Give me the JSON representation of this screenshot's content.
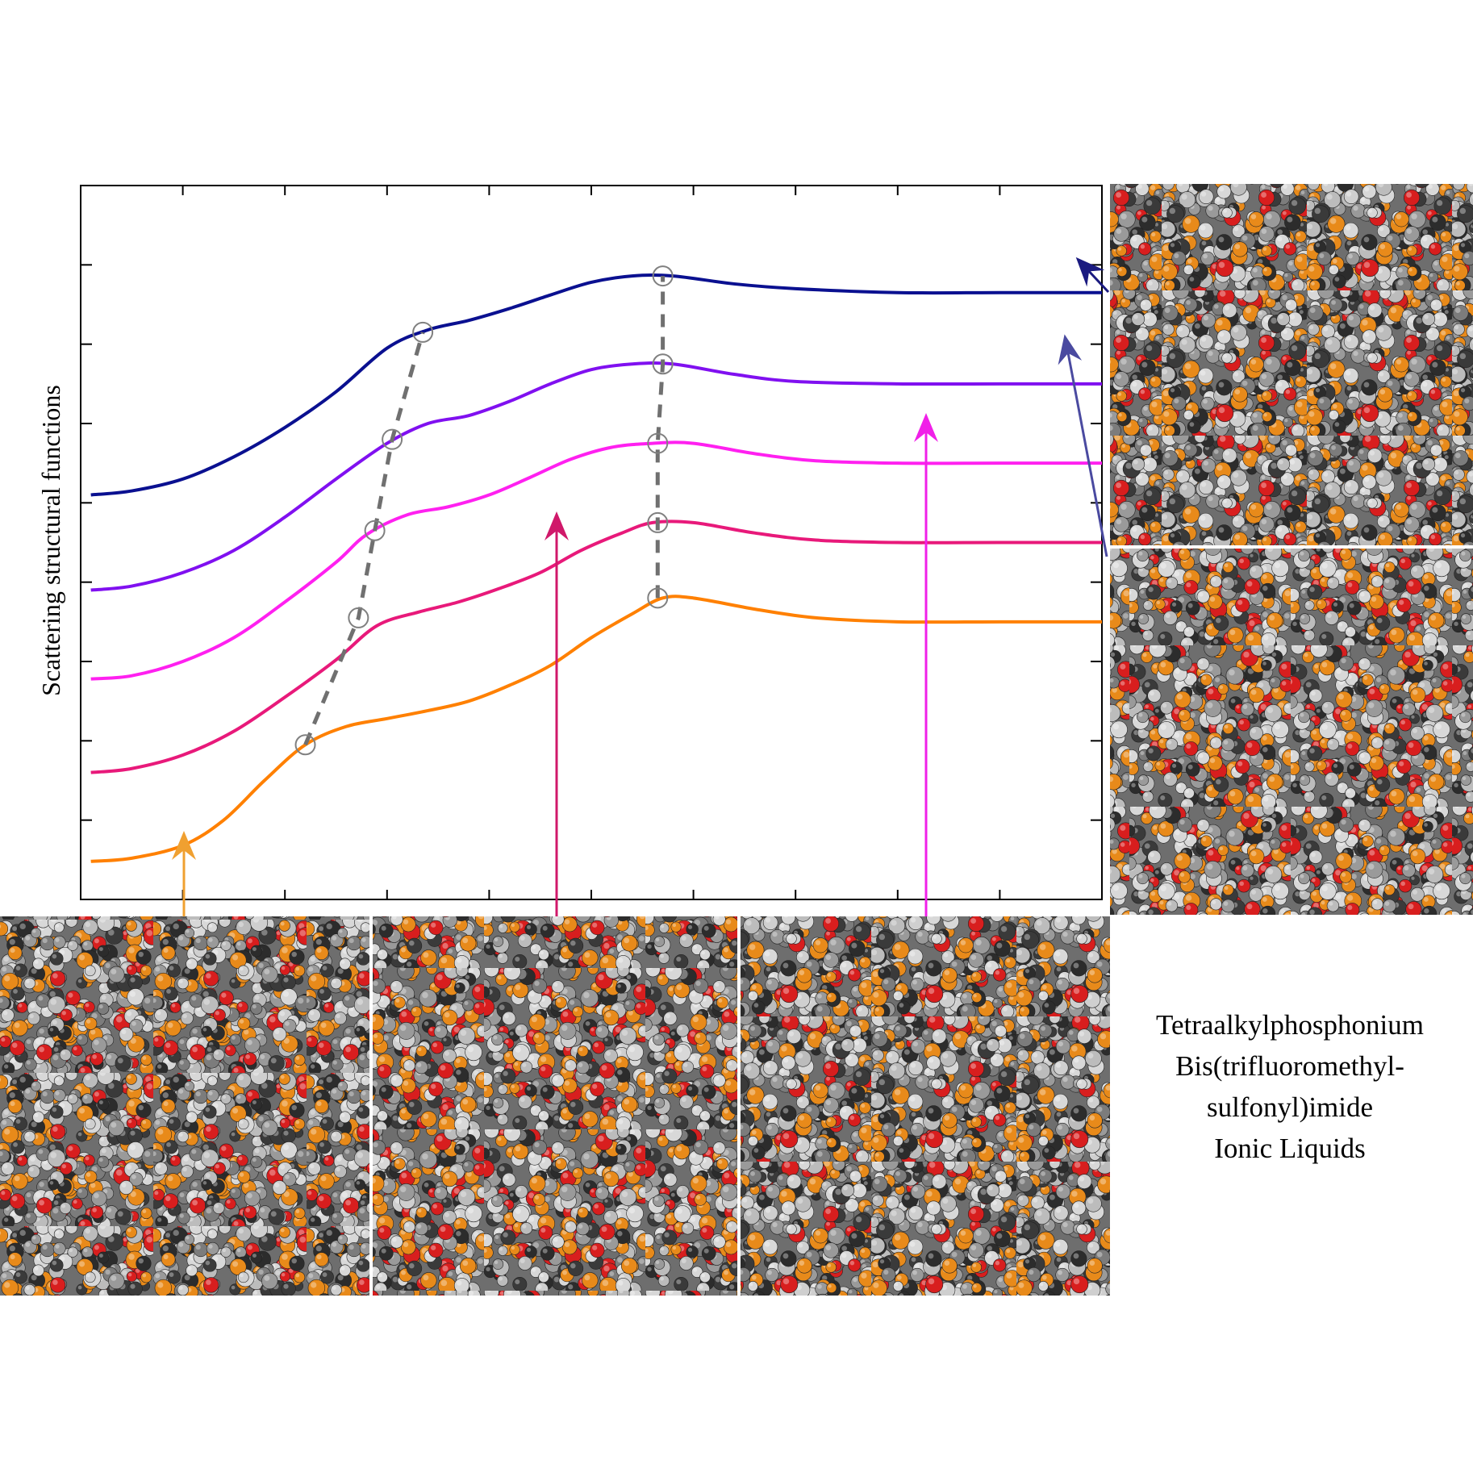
{
  "caption": {
    "lines": [
      "Tetraalkylphosphonium",
      "Bis(trifluoromethyl-",
      "sulfonyl)imide",
      "Ionic Liquids"
    ]
  },
  "chart_data": {
    "type": "line",
    "title": "",
    "xlabel": "",
    "ylabel": "Scattering structural functions",
    "xlim": [
      0,
      10
    ],
    "ylim": [
      0,
      9
    ],
    "grid": false,
    "legend": "none",
    "tick_labels": "none",
    "x_tick_count": 9,
    "y_tick_count": 8,
    "series": [
      {
        "color": "#ff8000",
        "values": [
          [
            0.1,
            0.48
          ],
          [
            0.5,
            0.52
          ],
          [
            1.0,
            0.68
          ],
          [
            1.4,
            1.0
          ],
          [
            1.8,
            1.5
          ],
          [
            2.2,
            1.95
          ],
          [
            2.6,
            2.18
          ],
          [
            3.0,
            2.28
          ],
          [
            3.4,
            2.38
          ],
          [
            3.8,
            2.5
          ],
          [
            4.2,
            2.7
          ],
          [
            4.6,
            2.95
          ],
          [
            5.0,
            3.3
          ],
          [
            5.4,
            3.6
          ],
          [
            5.7,
            3.8
          ],
          [
            6.0,
            3.8
          ],
          [
            6.6,
            3.66
          ],
          [
            7.2,
            3.55
          ],
          [
            8.0,
            3.5
          ],
          [
            9.0,
            3.5
          ],
          [
            10.0,
            3.5
          ]
        ]
      },
      {
        "color": "#e8197a",
        "values": [
          [
            0.1,
            1.6
          ],
          [
            0.5,
            1.65
          ],
          [
            1.0,
            1.82
          ],
          [
            1.5,
            2.12
          ],
          [
            2.0,
            2.55
          ],
          [
            2.5,
            3.02
          ],
          [
            2.9,
            3.45
          ],
          [
            3.3,
            3.62
          ],
          [
            3.7,
            3.75
          ],
          [
            4.1,
            3.92
          ],
          [
            4.5,
            4.12
          ],
          [
            4.9,
            4.4
          ],
          [
            5.3,
            4.62
          ],
          [
            5.6,
            4.75
          ],
          [
            6.0,
            4.75
          ],
          [
            6.6,
            4.62
          ],
          [
            7.2,
            4.53
          ],
          [
            8.0,
            4.5
          ],
          [
            9.0,
            4.5
          ],
          [
            10.0,
            4.5
          ]
        ]
      },
      {
        "color": "#ff20f0",
        "values": [
          [
            0.1,
            2.78
          ],
          [
            0.5,
            2.82
          ],
          [
            1.0,
            3.0
          ],
          [
            1.5,
            3.3
          ],
          [
            2.0,
            3.75
          ],
          [
            2.5,
            4.25
          ],
          [
            2.8,
            4.6
          ],
          [
            3.2,
            4.85
          ],
          [
            3.6,
            4.95
          ],
          [
            4.0,
            5.1
          ],
          [
            4.4,
            5.32
          ],
          [
            4.8,
            5.55
          ],
          [
            5.2,
            5.7
          ],
          [
            5.6,
            5.75
          ],
          [
            6.0,
            5.75
          ],
          [
            6.6,
            5.62
          ],
          [
            7.2,
            5.53
          ],
          [
            8.0,
            5.5
          ],
          [
            9.0,
            5.5
          ],
          [
            10.0,
            5.5
          ]
        ]
      },
      {
        "color": "#8010f0",
        "values": [
          [
            0.1,
            3.9
          ],
          [
            0.5,
            3.95
          ],
          [
            1.0,
            4.12
          ],
          [
            1.5,
            4.4
          ],
          [
            2.0,
            4.82
          ],
          [
            2.5,
            5.3
          ],
          [
            3.0,
            5.75
          ],
          [
            3.4,
            6.0
          ],
          [
            3.8,
            6.1
          ],
          [
            4.2,
            6.28
          ],
          [
            4.6,
            6.5
          ],
          [
            5.0,
            6.68
          ],
          [
            5.4,
            6.75
          ],
          [
            5.8,
            6.75
          ],
          [
            6.4,
            6.62
          ],
          [
            7.0,
            6.53
          ],
          [
            8.0,
            6.5
          ],
          [
            9.0,
            6.5
          ],
          [
            10.0,
            6.5
          ]
        ]
      },
      {
        "color": "#0a1090",
        "values": [
          [
            0.1,
            5.1
          ],
          [
            0.5,
            5.15
          ],
          [
            1.0,
            5.3
          ],
          [
            1.5,
            5.58
          ],
          [
            2.0,
            5.95
          ],
          [
            2.5,
            6.4
          ],
          [
            3.0,
            6.95
          ],
          [
            3.4,
            7.18
          ],
          [
            3.8,
            7.3
          ],
          [
            4.2,
            7.45
          ],
          [
            4.6,
            7.62
          ],
          [
            5.0,
            7.78
          ],
          [
            5.4,
            7.86
          ],
          [
            5.8,
            7.86
          ],
          [
            6.4,
            7.76
          ],
          [
            7.0,
            7.7
          ],
          [
            8.0,
            7.65
          ],
          [
            9.0,
            7.65
          ],
          [
            10.0,
            7.65
          ]
        ]
      }
    ],
    "peak_markers": {
      "first": [
        [
          2.2,
          1.95
        ],
        [
          2.72,
          3.55
        ],
        [
          2.88,
          4.65
        ],
        [
          3.05,
          5.8
        ],
        [
          3.35,
          7.15
        ]
      ],
      "second": [
        [
          5.65,
          3.8
        ],
        [
          5.65,
          4.75
        ],
        [
          5.65,
          5.75
        ],
        [
          5.7,
          6.75
        ],
        [
          5.7,
          7.86
        ]
      ]
    }
  }
}
